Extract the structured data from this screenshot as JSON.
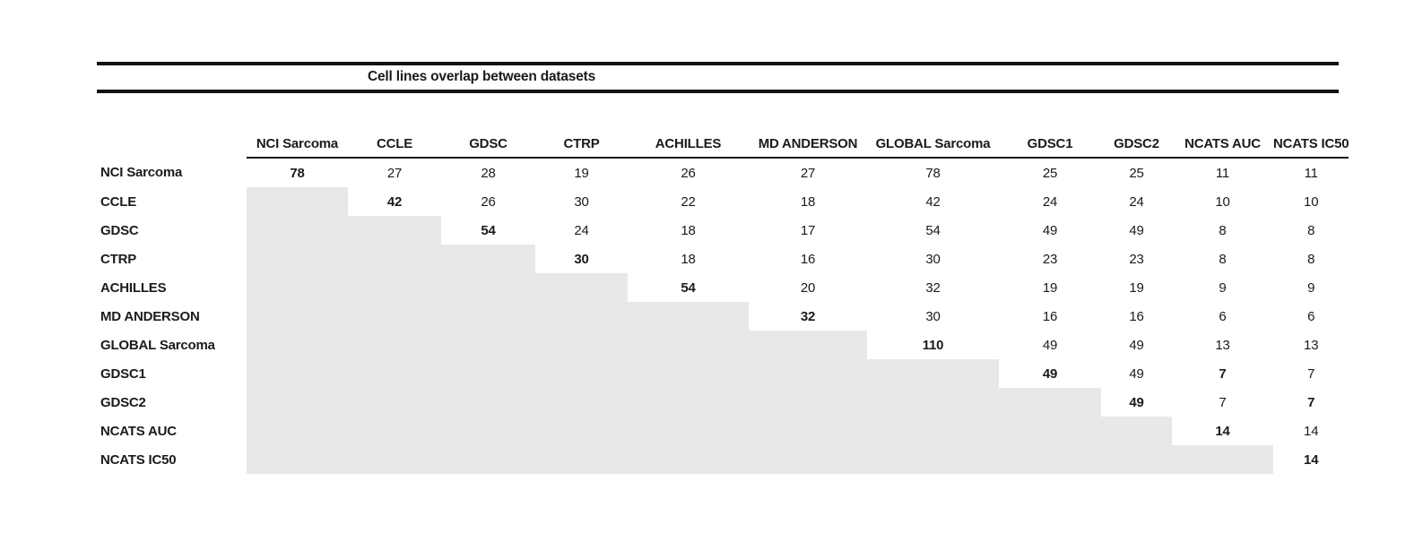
{
  "chart_data": {
    "type": "table",
    "title": "Cell lines overlap between datasets",
    "columns": [
      "NCI Sarcoma",
      "CCLE",
      "GDSC",
      "CTRP",
      "ACHILLES",
      "MD ANDERSON",
      "GLOBAL Sarcoma",
      "GDSC1",
      "GDSC2",
      "NCATS AUC",
      "NCATS IC50"
    ],
    "rows": [
      {
        "label": "NCI Sarcoma",
        "cells": [
          78,
          27,
          28,
          19,
          26,
          27,
          78,
          25,
          25,
          11,
          11
        ],
        "bold_cols": [
          0
        ]
      },
      {
        "label": "CCLE",
        "cells": [
          null,
          42,
          26,
          30,
          22,
          18,
          42,
          24,
          24,
          10,
          10
        ],
        "bold_cols": [
          1
        ]
      },
      {
        "label": "GDSC",
        "cells": [
          null,
          null,
          54,
          24,
          18,
          17,
          54,
          49,
          49,
          8,
          8
        ],
        "bold_cols": [
          2
        ]
      },
      {
        "label": "CTRP",
        "cells": [
          null,
          null,
          null,
          30,
          18,
          16,
          30,
          23,
          23,
          8,
          8
        ],
        "bold_cols": [
          3
        ]
      },
      {
        "label": "ACHILLES",
        "cells": [
          null,
          null,
          null,
          null,
          54,
          20,
          32,
          19,
          19,
          9,
          9
        ],
        "bold_cols": [
          4
        ]
      },
      {
        "label": "MD ANDERSON",
        "cells": [
          null,
          null,
          null,
          null,
          null,
          32,
          30,
          16,
          16,
          6,
          6
        ],
        "bold_cols": [
          5
        ]
      },
      {
        "label": "GLOBAL Sarcoma",
        "cells": [
          null,
          null,
          null,
          null,
          null,
          null,
          110,
          49,
          49,
          13,
          13
        ],
        "bold_cols": [
          6
        ]
      },
      {
        "label": "GDSC1",
        "cells": [
          null,
          null,
          null,
          null,
          null,
          null,
          null,
          49,
          49,
          7,
          7
        ],
        "bold_cols": [
          7,
          9
        ]
      },
      {
        "label": "GDSC2",
        "cells": [
          null,
          null,
          null,
          null,
          null,
          null,
          null,
          null,
          49,
          7,
          7
        ],
        "bold_cols": [
          8,
          10
        ]
      },
      {
        "label": "NCATS AUC",
        "cells": [
          null,
          null,
          null,
          null,
          null,
          null,
          null,
          null,
          null,
          14,
          14
        ],
        "bold_cols": [
          9
        ]
      },
      {
        "label": "NCATS IC50",
        "cells": [
          null,
          null,
          null,
          null,
          null,
          null,
          null,
          null,
          null,
          null,
          14
        ],
        "bold_cols": [
          10
        ]
      }
    ],
    "layout": {
      "lower_triangle": "shaded",
      "diagonal": "bold",
      "grid": "off",
      "legend": "none"
    }
  },
  "colors": {
    "shaded_cell": "#e8e8e8",
    "text": "#1b1b1b",
    "rule": "#111111"
  }
}
